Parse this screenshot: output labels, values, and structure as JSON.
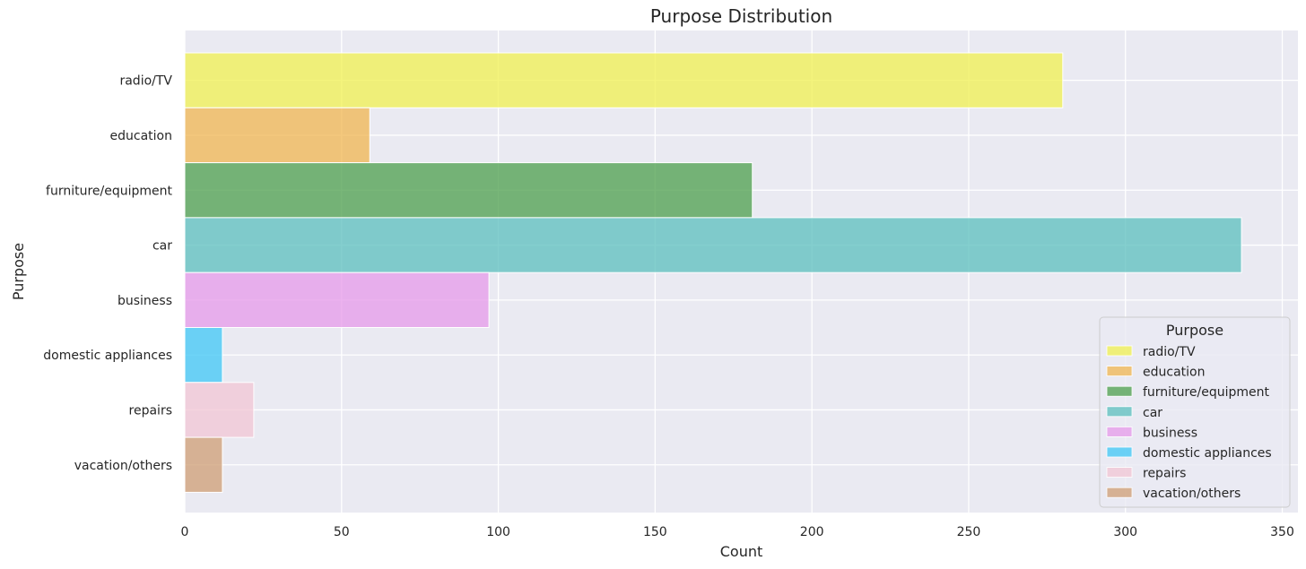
{
  "chart_data": {
    "type": "bar",
    "orientation": "horizontal",
    "title": "Purpose Distribution",
    "xlabel": "Count",
    "ylabel": "Purpose",
    "categories": [
      "radio/TV",
      "education",
      "furniture/equipment",
      "car",
      "business",
      "domestic appliances",
      "repairs",
      "vacation/others"
    ],
    "values": [
      280,
      59,
      181,
      337,
      97,
      12,
      22,
      12
    ],
    "colors": [
      "#f0f050",
      "#f0b650",
      "#4c9f4c",
      "#5bbfbd",
      "#e69ae9",
      "#3fc7f5",
      "#f2c5d4",
      "#cf9e74"
    ],
    "xlim": [
      0,
      355
    ],
    "xticks": [
      0,
      50,
      100,
      150,
      200,
      250,
      300,
      350
    ],
    "grid": true,
    "legend": {
      "title": "Purpose",
      "placement": "lower-right",
      "entries": [
        "radio/TV",
        "education",
        "furniture/equipment",
        "car",
        "business",
        "domestic appliances",
        "repairs",
        "vacation/others"
      ]
    }
  }
}
